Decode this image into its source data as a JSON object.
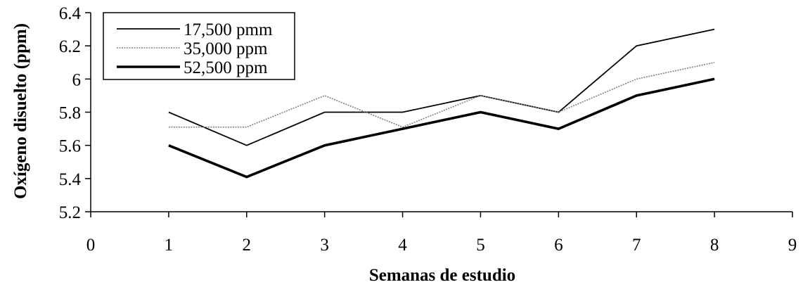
{
  "chart_data": {
    "type": "line",
    "xlabel": "Semanas de estudio",
    "ylabel": "Oxígeno disuelto (ppm)",
    "xlim": [
      0,
      9
    ],
    "ylim": [
      5.2,
      6.4
    ],
    "x_ticks": [
      "0",
      "1",
      "2",
      "3",
      "4",
      "5",
      "6",
      "7",
      "8",
      "9"
    ],
    "y_ticks": [
      "5.2",
      "5.4",
      "5.6",
      "5.8",
      "6",
      "6.2",
      "6.4"
    ],
    "grid": false,
    "legend_position": "top-left",
    "x": [
      1,
      2,
      3,
      4,
      5,
      6,
      7,
      8
    ],
    "series": [
      {
        "name": "17,500 pmm",
        "values": [
          5.8,
          5.6,
          5.8,
          5.8,
          5.9,
          5.8,
          6.2,
          6.3
        ],
        "color": "#000000",
        "style": "thin"
      },
      {
        "name": "35,000 ppm",
        "values": [
          5.71,
          5.71,
          5.9,
          5.71,
          5.9,
          5.8,
          6.0,
          6.1
        ],
        "color": "#808080",
        "style": "dotted"
      },
      {
        "name": "52,500 ppm",
        "values": [
          5.6,
          5.41,
          5.6,
          5.7,
          5.8,
          5.7,
          5.9,
          6.0
        ],
        "color": "#000000",
        "style": "thick"
      }
    ]
  }
}
